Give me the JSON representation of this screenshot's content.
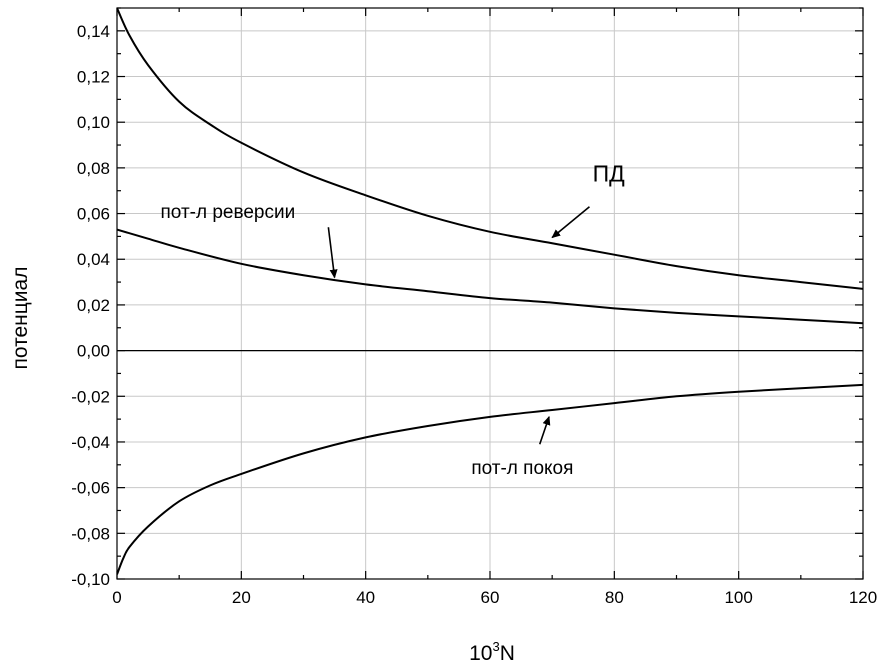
{
  "chart_data": {
    "type": "line",
    "title": "",
    "xlabel_base": "10",
    "xlabel_sup": "3",
    "xlabel_var": "N",
    "ylabel": "потенциал",
    "xlim": [
      0,
      120
    ],
    "ylim": [
      -0.1,
      0.15
    ],
    "x_ticks": [
      0,
      20,
      40,
      60,
      80,
      100,
      120
    ],
    "x_tick_labels": [
      "0",
      "20",
      "40",
      "60",
      "80",
      "100",
      "120"
    ],
    "y_ticks": [
      -0.1,
      -0.08,
      -0.06,
      -0.04,
      -0.02,
      0.0,
      0.02,
      0.04,
      0.06,
      0.08,
      0.1,
      0.12,
      0.14
    ],
    "y_tick_labels": [
      "-0,10",
      "-0,08",
      "-0,06",
      "-0,04",
      "-0,02",
      "0,00",
      "0,02",
      "0,04",
      "0,06",
      "0,08",
      "0,10",
      "0,12",
      "0,14"
    ],
    "grid": true,
    "series": [
      {
        "label": "ПД",
        "x": [
          0,
          2,
          5,
          10,
          15,
          20,
          30,
          40,
          50,
          60,
          70,
          80,
          90,
          100,
          110,
          120
        ],
        "y": [
          0.15,
          0.138,
          0.125,
          0.109,
          0.099,
          0.091,
          0.078,
          0.068,
          0.059,
          0.052,
          0.047,
          0.042,
          0.037,
          0.033,
          0.03,
          0.027
        ]
      },
      {
        "label": "пот-л реверсии",
        "x": [
          0,
          5,
          10,
          20,
          30,
          40,
          50,
          60,
          70,
          80,
          90,
          100,
          110,
          120
        ],
        "y": [
          0.053,
          0.049,
          0.045,
          0.038,
          0.033,
          0.029,
          0.026,
          0.023,
          0.021,
          0.0185,
          0.0165,
          0.015,
          0.0135,
          0.012
        ]
      },
      {
        "label": "пот-л покоя",
        "x": [
          0,
          1,
          2,
          5,
          10,
          15,
          20,
          30,
          40,
          50,
          60,
          70,
          80,
          90,
          100,
          110,
          120
        ],
        "y": [
          -0.098,
          -0.091,
          -0.086,
          -0.077,
          -0.066,
          -0.059,
          -0.054,
          -0.045,
          -0.038,
          -0.033,
          -0.029,
          -0.026,
          -0.023,
          -0.02,
          -0.018,
          -0.0165,
          -0.015
        ]
      },
      {
        "label": "",
        "x": [
          0,
          120
        ],
        "y": [
          0,
          0
        ]
      }
    ],
    "annotations": [
      {
        "text": "ПД",
        "text_at": [
          76.5,
          0.074
        ],
        "arrow_from": [
          76,
          0.063
        ],
        "arrow_to": [
          70,
          0.0495
        ]
      },
      {
        "text": "пот-л реверсии",
        "text_at": [
          7,
          0.058
        ],
        "arrow_from": [
          34,
          0.054
        ],
        "arrow_to": [
          35,
          0.032
        ]
      },
      {
        "text": "пот-л покоя",
        "text_at": [
          57,
          -0.054
        ],
        "arrow_from": [
          68,
          -0.041
        ],
        "arrow_to": [
          69.5,
          -0.029
        ]
      }
    ]
  }
}
